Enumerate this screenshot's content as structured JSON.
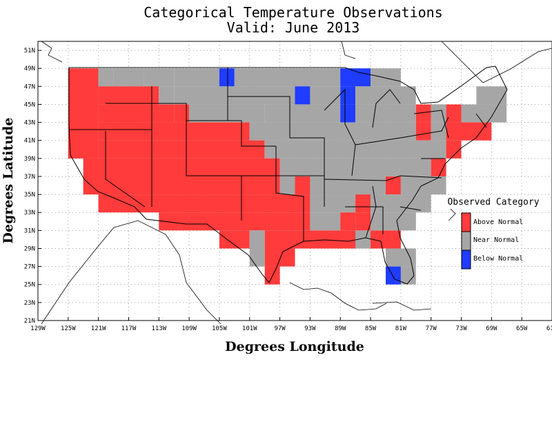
{
  "title_line1": "Categorical Temperature Observations",
  "title_line2": "Valid: June 2013",
  "xlabel": "Degrees Longitude",
  "ylabel": "Degrees Latitude",
  "x_ticks": [
    "129W",
    "125W",
    "121W",
    "117W",
    "113W",
    "109W",
    "105W",
    "101W",
    "97W",
    "93W",
    "89W",
    "85W",
    "81W",
    "77W",
    "73W",
    "69W",
    "65W",
    "61W"
  ],
  "y_ticks": [
    "51N",
    "49N",
    "47N",
    "45N",
    "43N",
    "41N",
    "39N",
    "37N",
    "35N",
    "33N",
    "31N",
    "29N",
    "27N",
    "25N",
    "23N",
    "21N"
  ],
  "legend": {
    "title": "Observed Category",
    "items": [
      {
        "label": "Above Normal",
        "color": "#ff3b3b"
      },
      {
        "label": "Near Normal",
        "color": "#a6a6a6"
      },
      {
        "label": "Below Normal",
        "color": "#1f3cff"
      }
    ]
  },
  "colors": {
    "above": "#ff3b3b",
    "near": "#a6a6a6",
    "below": "#1f3cff"
  },
  "chart_data": {
    "type": "heatmap",
    "xlim": [
      -129,
      -61
    ],
    "ylim": [
      21,
      52
    ],
    "cell_size_deg": [
      2,
      2
    ],
    "cells_format": "[lon_west, lat_south, lon_east, lat_north, category]",
    "cells": [
      [
        -125,
        45,
        -121,
        49,
        "above"
      ],
      [
        -121,
        47,
        -119,
        49,
        "near"
      ],
      [
        -119,
        47,
        -115,
        49,
        "near"
      ],
      [
        -115,
        47,
        -111,
        49,
        "near"
      ],
      [
        -111,
        47,
        -107,
        49,
        "near"
      ],
      [
        -107,
        47,
        -105,
        49,
        "near"
      ],
      [
        -105,
        47,
        -103,
        49,
        "below"
      ],
      [
        -103,
        47,
        -89,
        49,
        "near"
      ],
      [
        -89,
        47,
        -85,
        49,
        "below"
      ],
      [
        -85,
        47,
        -81,
        49,
        "near"
      ],
      [
        -121,
        45,
        -113,
        47,
        "above"
      ],
      [
        -113,
        45,
        -111,
        47,
        "near"
      ],
      [
        -111,
        45,
        -95,
        47,
        "near"
      ],
      [
        -95,
        45,
        -93,
        47,
        "below"
      ],
      [
        -93,
        45,
        -89,
        47,
        "near"
      ],
      [
        -89,
        45,
        -87,
        47,
        "below"
      ],
      [
        -87,
        45,
        -79,
        47,
        "near"
      ],
      [
        -71,
        45,
        -67,
        47,
        "near"
      ],
      [
        -125,
        39,
        -121,
        45,
        "above"
      ],
      [
        -121,
        43,
        -111,
        45,
        "above"
      ],
      [
        -111,
        43,
        -109,
        45,
        "above"
      ],
      [
        -109,
        43,
        -99,
        45,
        "near"
      ],
      [
        -99,
        43,
        -89,
        45,
        "near"
      ],
      [
        -89,
        43,
        -87,
        45,
        "below"
      ],
      [
        -87,
        43,
        -79,
        45,
        "near"
      ],
      [
        -79,
        43,
        -77,
        45,
        "above"
      ],
      [
        -77,
        43,
        -75,
        45,
        "near"
      ],
      [
        -75,
        43,
        -73,
        45,
        "above"
      ],
      [
        -73,
        43,
        -67,
        45,
        "near"
      ],
      [
        -121,
        41,
        -101,
        43,
        "above"
      ],
      [
        -101,
        41,
        -79,
        43,
        "near"
      ],
      [
        -79,
        41,
        -77,
        43,
        "above"
      ],
      [
        -77,
        41,
        -75,
        43,
        "near"
      ],
      [
        -75,
        41,
        -69,
        43,
        "above"
      ],
      [
        -121,
        39,
        -99,
        41,
        "above"
      ],
      [
        -99,
        39,
        -75,
        41,
        "near"
      ],
      [
        -75,
        39,
        -73,
        41,
        "above"
      ],
      [
        -123,
        35,
        -97,
        39,
        "above"
      ],
      [
        -97,
        37,
        -95,
        39,
        "near"
      ],
      [
        -95,
        37,
        -77,
        39,
        "near"
      ],
      [
        -77,
        37,
        -75,
        39,
        "above"
      ],
      [
        -97,
        35,
        -95,
        37,
        "near"
      ],
      [
        -95,
        35,
        -93,
        37,
        "above"
      ],
      [
        -93,
        35,
        -83,
        37,
        "near"
      ],
      [
        -83,
        35,
        -81,
        37,
        "above"
      ],
      [
        -81,
        35,
        -75,
        37,
        "near"
      ],
      [
        -121,
        33,
        -93,
        35,
        "above"
      ],
      [
        -93,
        33,
        -87,
        35,
        "near"
      ],
      [
        -87,
        33,
        -85,
        35,
        "above"
      ],
      [
        -85,
        33,
        -77,
        35,
        "near"
      ],
      [
        -113,
        31,
        -93,
        33,
        "above"
      ],
      [
        -93,
        31,
        -89,
        33,
        "near"
      ],
      [
        -89,
        31,
        -87,
        33,
        "above"
      ],
      [
        -87,
        31,
        -85,
        33,
        "above"
      ],
      [
        -85,
        31,
        -79,
        33,
        "near"
      ],
      [
        -105,
        29,
        -101,
        31,
        "above"
      ],
      [
        -101,
        29,
        -99,
        31,
        "near"
      ],
      [
        -99,
        29,
        -83,
        31,
        "above"
      ],
      [
        -83,
        29,
        -81,
        31,
        "above"
      ],
      [
        -99,
        27,
        -95,
        29,
        "above"
      ],
      [
        -87,
        29,
        -85,
        31,
        "near"
      ],
      [
        -101,
        27,
        -99,
        29,
        "near"
      ],
      [
        -83,
        27,
        -79,
        29,
        "near"
      ],
      [
        -99,
        25,
        -97,
        27,
        "above"
      ],
      [
        -83,
        25,
        -81,
        27,
        "below"
      ],
      [
        -81,
        25,
        -79,
        27,
        "near"
      ]
    ]
  }
}
